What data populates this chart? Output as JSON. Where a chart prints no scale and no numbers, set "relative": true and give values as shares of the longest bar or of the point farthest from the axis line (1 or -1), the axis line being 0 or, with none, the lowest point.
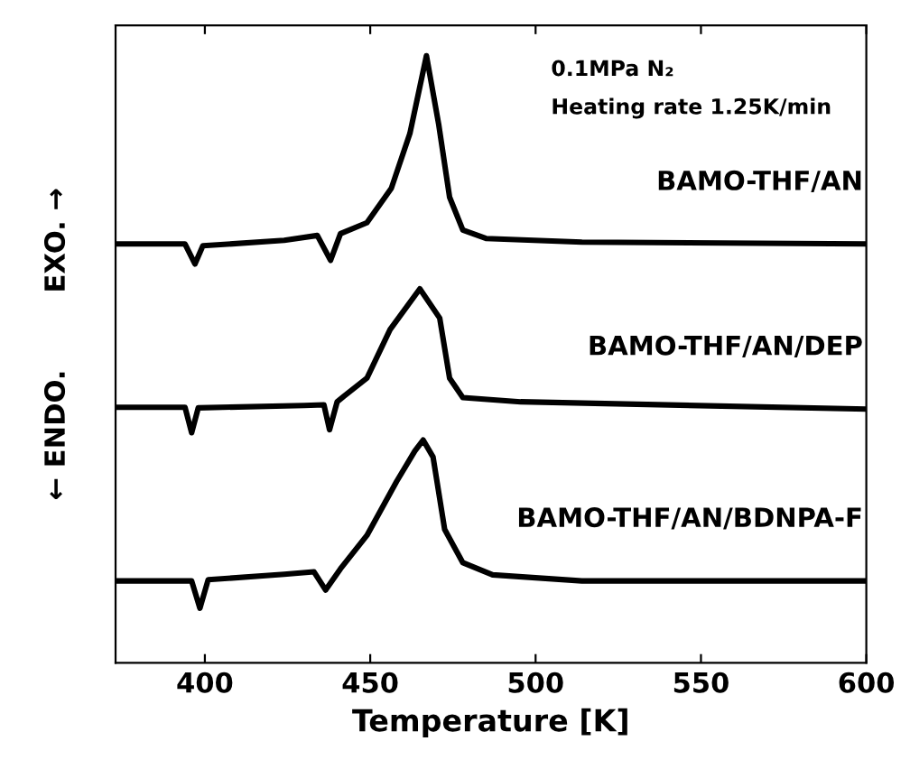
{
  "chart_data": {
    "type": "line",
    "relative": true,
    "xlabel": "Temperature [K]",
    "ylabel": "← ENDO.        EXO. →",
    "xlim": [
      373,
      600
    ],
    "xticks": [
      400,
      450,
      500,
      550,
      600
    ],
    "annotations": [
      "0.1MPa N₂",
      "Heating rate 1.25K/min"
    ],
    "grid": false,
    "legend": false,
    "marker": "none",
    "line_style": "solid",
    "series": [
      {
        "name": "BAMO-THF/AN",
        "color": "#000000",
        "x": [
          373,
          394,
          397,
          399.4,
          424,
          434,
          438,
          441,
          449,
          456.4,
          462,
          467,
          470.7,
          474,
          478,
          485,
          514,
          600
        ],
        "values": [
          0.69,
          0.69,
          0.657,
          0.687,
          0.696,
          0.704,
          0.663,
          0.707,
          0.725,
          0.782,
          0.872,
          1.0,
          0.887,
          0.767,
          0.713,
          0.699,
          0.693,
          0.69
        ]
      },
      {
        "name": "BAMO-THF/AN/DEP",
        "color": "#000000",
        "x": [
          373,
          394,
          396,
          398,
          430,
          436,
          437.7,
          440,
          442,
          449,
          456,
          465,
          471,
          474,
          478,
          495.5,
          600
        ],
        "values": [
          0.421,
          0.421,
          0.379,
          0.42,
          0.424,
          0.425,
          0.384,
          0.43,
          0.439,
          0.469,
          0.549,
          0.616,
          0.568,
          0.469,
          0.437,
          0.43,
          0.418
        ]
      },
      {
        "name": "BAMO-THF/AN/BDNPA-F",
        "color": "#000000",
        "x": [
          373,
          396,
          398.5,
          401,
          424,
          433,
          436.5,
          441,
          449,
          458,
          463.5,
          466,
          469,
          472.5,
          478,
          487,
          514,
          600
        ],
        "values": [
          0.135,
          0.135,
          0.09,
          0.137,
          0.146,
          0.15,
          0.12,
          0.155,
          0.21,
          0.299,
          0.349,
          0.367,
          0.339,
          0.22,
          0.165,
          0.145,
          0.135,
          0.135
        ]
      }
    ]
  }
}
